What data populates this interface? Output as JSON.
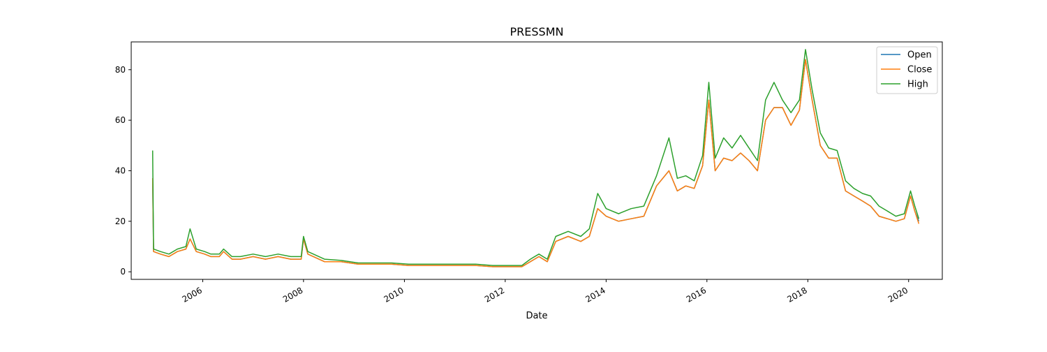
{
  "chart_data": {
    "type": "line",
    "title": "PRESSMN",
    "xlabel": "Date",
    "ylabel": "",
    "xlim": [
      "2004-08-01",
      "2020-09-01"
    ],
    "ylim": [
      -3,
      91
    ],
    "x_ticks": [
      "2006-01-01",
      "2008-01-01",
      "2010-01-01",
      "2012-01-01",
      "2014-01-01",
      "2016-01-01",
      "2018-01-01",
      "2020-01-01"
    ],
    "x_tick_labels": [
      "2006",
      "2008",
      "2010",
      "2012",
      "2014",
      "2016",
      "2018",
      "2020"
    ],
    "y_ticks": [
      0,
      20,
      40,
      60,
      80
    ],
    "y_tick_labels": [
      "0",
      "20",
      "40",
      "60",
      "80"
    ],
    "grid": false,
    "legend_position": "top-right",
    "x": [
      "2005-01-03",
      "2005-01-10",
      "2005-03-01",
      "2005-05-01",
      "2005-07-01",
      "2005-09-01",
      "2005-10-01",
      "2005-11-15",
      "2006-01-15",
      "2006-03-01",
      "2006-05-01",
      "2006-06-01",
      "2006-08-01",
      "2006-10-01",
      "2007-01-01",
      "2007-04-01",
      "2007-07-01",
      "2007-10-01",
      "2007-12-15",
      "2008-01-01",
      "2008-02-01",
      "2008-06-01",
      "2008-10-01",
      "2009-02-01",
      "2009-06-01",
      "2009-10-01",
      "2010-02-01",
      "2010-06-01",
      "2010-10-01",
      "2011-02-01",
      "2011-06-01",
      "2011-10-01",
      "2012-02-01",
      "2012-05-01",
      "2012-07-01",
      "2012-09-01",
      "2012-11-01",
      "2013-01-01",
      "2013-04-01",
      "2013-07-01",
      "2013-09-01",
      "2013-11-01",
      "2014-01-01",
      "2014-04-01",
      "2014-07-01",
      "2014-10-01",
      "2015-01-01",
      "2015-04-01",
      "2015-06-01",
      "2015-08-01",
      "2015-10-01",
      "2015-12-01",
      "2016-01-15",
      "2016-03-01",
      "2016-05-01",
      "2016-07-01",
      "2016-09-01",
      "2016-11-01",
      "2017-01-01",
      "2017-03-01",
      "2017-05-01",
      "2017-07-01",
      "2017-09-01",
      "2017-11-01",
      "2017-12-15",
      "2018-02-01",
      "2018-04-01",
      "2018-06-01",
      "2018-08-01",
      "2018-10-01",
      "2018-12-01",
      "2019-02-01",
      "2019-04-01",
      "2019-06-01",
      "2019-08-01",
      "2019-10-01",
      "2019-12-01",
      "2020-01-15",
      "2020-02-15",
      "2020-03-15"
    ],
    "series": [
      {
        "name": "Open",
        "color": "#1f77b4",
        "values": [
          37,
          8,
          7,
          6,
          8,
          9,
          13,
          8,
          7,
          6,
          6,
          8,
          5,
          5,
          6,
          5,
          6,
          5,
          5,
          13,
          7,
          4,
          4,
          3,
          3,
          3,
          2.5,
          2.5,
          2.5,
          2.5,
          2.5,
          2,
          2,
          2,
          4,
          6,
          4,
          12,
          14,
          12,
          14,
          25,
          22,
          20,
          21,
          22,
          34,
          40,
          32,
          34,
          33,
          42,
          68,
          40,
          45,
          44,
          47,
          44,
          40,
          60,
          65,
          65,
          58,
          64,
          84,
          68,
          50,
          45,
          45,
          32,
          30,
          28,
          26,
          22,
          21,
          20,
          21,
          30,
          24,
          20
        ]
      },
      {
        "name": "Close",
        "color": "#ff7f0e",
        "values": [
          37,
          8,
          7,
          6,
          8,
          9,
          13,
          8,
          7,
          6,
          6,
          8,
          5,
          5,
          6,
          5,
          6,
          5,
          5,
          13,
          7,
          4,
          4,
          3,
          3,
          3,
          2.5,
          2.5,
          2.5,
          2.5,
          2.5,
          2,
          2,
          2,
          4,
          6,
          4,
          12,
          14,
          12,
          14,
          25,
          22,
          20,
          21,
          22,
          34,
          40,
          32,
          34,
          33,
          42,
          68,
          40,
          45,
          44,
          47,
          44,
          40,
          60,
          65,
          65,
          58,
          64,
          84,
          68,
          50,
          45,
          45,
          32,
          30,
          28,
          26,
          22,
          21,
          20,
          21,
          30,
          24,
          19
        ]
      },
      {
        "name": "High",
        "color": "#2ca02c",
        "values": [
          48,
          9,
          8,
          7,
          9,
          10,
          17,
          9,
          8,
          7,
          7,
          9,
          6,
          6,
          7,
          6,
          7,
          6,
          6,
          14,
          8,
          5,
          4.5,
          3.5,
          3.5,
          3.5,
          3,
          3,
          3,
          3,
          3,
          2.5,
          2.5,
          2.5,
          5,
          7,
          5,
          14,
          16,
          14,
          17,
          31,
          25,
          23,
          25,
          26,
          38,
          53,
          37,
          38,
          36,
          46,
          75,
          45,
          53,
          49,
          54,
          49,
          44,
          68,
          75,
          68,
          63,
          68,
          88,
          72,
          55,
          49,
          48,
          36,
          33,
          31,
          30,
          26,
          24,
          22,
          23,
          32,
          26,
          21
        ]
      }
    ]
  }
}
